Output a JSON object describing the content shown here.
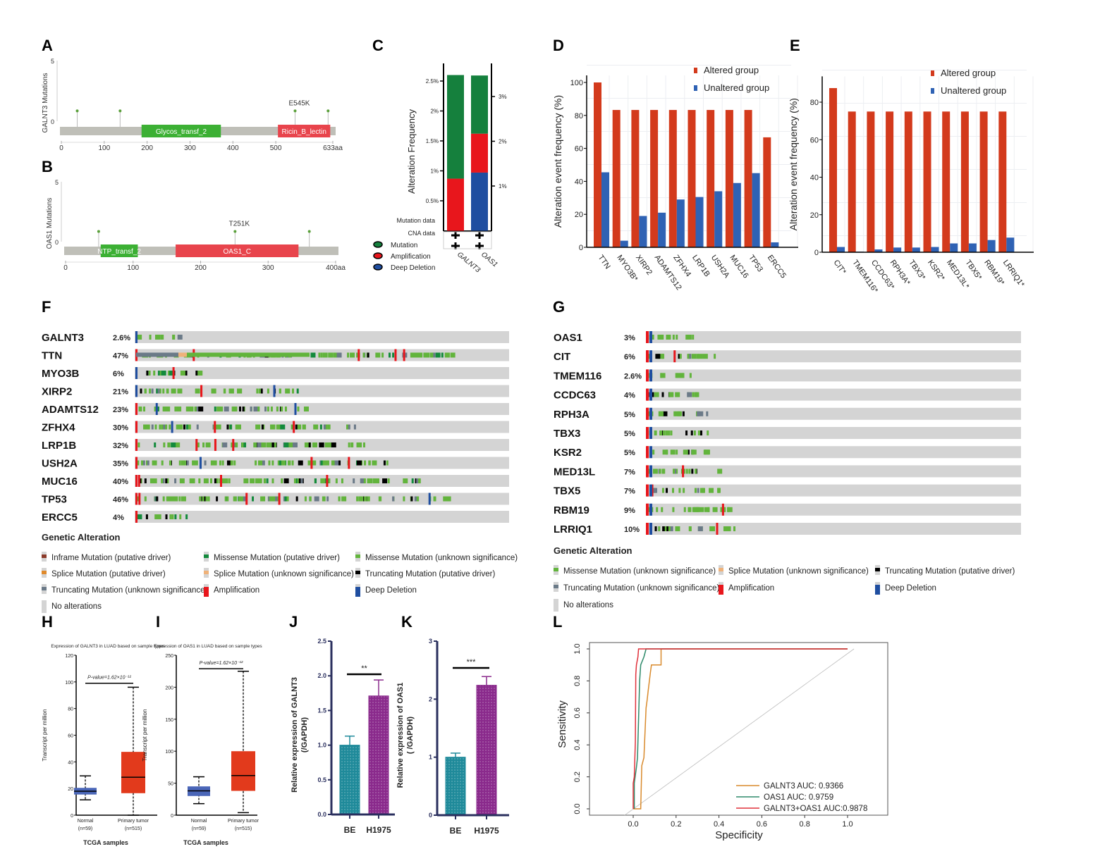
{
  "panel_letters": [
    "A",
    "B",
    "C",
    "D",
    "E",
    "F",
    "G",
    "H",
    "I",
    "J",
    "K",
    "L"
  ],
  "chart_data": [
    {
      "panel": "A",
      "type": "lollipop",
      "ylabel": "GALNT3 Mutations",
      "yticks": [
        "5",
        "0"
      ],
      "xticks": [
        "0",
        "100",
        "200",
        "300",
        "400",
        "500",
        "633aa"
      ],
      "length": 633,
      "domains": [
        {
          "name": "Glycos_transf_2",
          "start": 187,
          "end": 372,
          "color": "#3cb034"
        },
        {
          "name": "Ricin_B_lectin",
          "start": 505,
          "end": 627,
          "color": "#e8444c"
        }
      ],
      "mutations": [
        {
          "pos": 37,
          "count": 1
        },
        {
          "pos": 137,
          "count": 1
        },
        {
          "pos": 545,
          "count": 1,
          "label": "E545K"
        },
        {
          "pos": 622,
          "count": 1
        }
      ]
    },
    {
      "panel": "B",
      "type": "lollipop",
      "ylabel": "OAS1 Mutations",
      "yticks": [
        "5",
        "0"
      ],
      "xticks": [
        "0",
        "100",
        "200",
        "300",
        "400aa"
      ],
      "length": 400,
      "domains": [
        {
          "name": "NTP_transf_2",
          "start": 52,
          "end": 107,
          "color": "#3cb034"
        },
        {
          "name": "OAS1_C",
          "start": 163,
          "end": 345,
          "color": "#e8444c"
        }
      ],
      "mutations": [
        {
          "pos": 49,
          "count": 1
        },
        {
          "pos": 251,
          "count": 1,
          "label": "T251K"
        },
        {
          "pos": 361,
          "count": 1
        }
      ]
    },
    {
      "panel": "C",
      "type": "stacked-bar",
      "ylabel": "Alteration Frequency",
      "left_ticks": [
        "2.5%",
        "2%",
        "1.5%",
        "1%",
        "0.5%"
      ],
      "right_ticks": [
        "3%",
        "2%",
        "1%"
      ],
      "categories": [
        "GALNT3",
        "OAS1"
      ],
      "series": [
        {
          "name": "Deep Deletion",
          "color": "#1f4ea0",
          "values": [
            0,
            1.3
          ]
        },
        {
          "name": "Amplification",
          "color": "#e8161c",
          "values": [
            0.87,
            0.87
          ]
        },
        {
          "name": "Mutation",
          "color": "#15803d",
          "values": [
            1.73,
            1.3
          ]
        }
      ],
      "row_labels": [
        "Mutation data",
        "CNA data"
      ],
      "legend": [
        "Mutation",
        "Amplification",
        "Deep Deletion"
      ]
    },
    {
      "panel": "D",
      "type": "bar",
      "ylabel": "Alteration event frequency (%)",
      "ylim": [
        0,
        100
      ],
      "yticks": [
        0,
        20,
        40,
        60,
        80,
        100
      ],
      "categories": [
        "TTN",
        "MYO3B*",
        "XIRP2",
        "ADAMTS12",
        "ZFHX4",
        "LRP1B",
        "USH2A",
        "MUC16",
        "TP53",
        "ERCC5"
      ],
      "series": [
        {
          "name": "Altered group",
          "color": "#d33a1c",
          "values": [
            100,
            83.3,
            83.3,
            83.3,
            83.3,
            83.3,
            83.3,
            83.3,
            83.3,
            66.7
          ]
        },
        {
          "name": "Unaltered group",
          "color": "#2f62b4",
          "values": [
            45.5,
            4,
            19,
            21,
            29,
            30.5,
            34,
            39,
            45,
            3
          ]
        }
      ],
      "legend": "top-right"
    },
    {
      "panel": "E",
      "type": "bar",
      "ylabel": "Alteration event frequency (%)",
      "ylim": [
        0,
        90
      ],
      "yticks": [
        0,
        20,
        40,
        60,
        80
      ],
      "categories": [
        "CIT*",
        "TMEM116*",
        "CCDC63*",
        "RPH3A*",
        "TBX3*",
        "KSR2*",
        "MED13L*",
        "TBX5*",
        "RBM19*",
        "LRRIQ1*"
      ],
      "series": [
        {
          "name": "Altered group",
          "color": "#d33a1c",
          "values": [
            87.5,
            75,
            75,
            75,
            75,
            75,
            75,
            75,
            75,
            75
          ]
        },
        {
          "name": "Unaltered group",
          "color": "#2f62b4",
          "values": [
            2.8,
            0.3,
            1.5,
            2.5,
            2.5,
            2.8,
            4.7,
            4.7,
            6.5,
            7.8
          ]
        }
      ],
      "legend": "top-right"
    },
    {
      "panel": "F",
      "type": "oncoprint",
      "genes": [
        {
          "name": "GALNT3",
          "pct": "2.6%"
        },
        {
          "name": "TTN",
          "pct": "47%"
        },
        {
          "name": "MYO3B",
          "pct": "6%"
        },
        {
          "name": "XIRP2",
          "pct": "21%"
        },
        {
          "name": "ADAMTS12",
          "pct": "23%"
        },
        {
          "name": "ZFHX4",
          "pct": "30%"
        },
        {
          "name": "LRP1B",
          "pct": "32%"
        },
        {
          "name": "USH2A",
          "pct": "35%"
        },
        {
          "name": "MUC16",
          "pct": "40%"
        },
        {
          "name": "TP53",
          "pct": "46%"
        },
        {
          "name": "ERCC5",
          "pct": "4%"
        }
      ],
      "legend_title": "Genetic Alteration",
      "legend": [
        {
          "label": "Inframe Mutation (putative driver)",
          "color": "#8b3a2a"
        },
        {
          "label": "Missense Mutation (putative driver)",
          "color": "#138a3c"
        },
        {
          "label": "Missense Mutation (unknown significance)",
          "color": "#62b43c"
        },
        {
          "label": "Splice Mutation (putative driver)",
          "color": "#e08a2c"
        },
        {
          "label": "Splice Mutation (unknown significance)",
          "color": "#efb27a"
        },
        {
          "label": "Truncating Mutation (putative driver)",
          "color": "#000000"
        },
        {
          "label": "Truncating Mutation (unknown significance)",
          "color": "#6b7a88"
        },
        {
          "label": "Amplification",
          "color": "#e8161c"
        },
        {
          "label": "Deep Deletion",
          "color": "#1f4ea0"
        },
        {
          "label": "No alterations",
          "color": "#d4d4d4"
        }
      ]
    },
    {
      "panel": "G",
      "type": "oncoprint",
      "genes": [
        {
          "name": "OAS1",
          "pct": "3%"
        },
        {
          "name": "CIT",
          "pct": "6%"
        },
        {
          "name": "TMEM116",
          "pct": "2.6%"
        },
        {
          "name": "CCDC63",
          "pct": "4%"
        },
        {
          "name": "RPH3A",
          "pct": "5%"
        },
        {
          "name": "TBX3",
          "pct": "5%"
        },
        {
          "name": "KSR2",
          "pct": "5%"
        },
        {
          "name": "MED13L",
          "pct": "7%"
        },
        {
          "name": "TBX5",
          "pct": "7%"
        },
        {
          "name": "RBM19",
          "pct": "9%"
        },
        {
          "name": "LRRIQ1",
          "pct": "10%"
        }
      ],
      "legend_title": "Genetic Alteration",
      "legend": [
        {
          "label": "Missense Mutation (unknown significance)",
          "color": "#62b43c"
        },
        {
          "label": "Splice Mutation (unknown significance)",
          "color": "#efb27a"
        },
        {
          "label": "Truncating Mutation (putative driver)",
          "color": "#000000"
        },
        {
          "label": "Truncating Mutation (unknown significance)",
          "color": "#6b7a88"
        },
        {
          "label": "Amplification",
          "color": "#e8161c"
        },
        {
          "label": "Deep Deletion",
          "color": "#1f4ea0"
        },
        {
          "label": "No alterations",
          "color": "#d4d4d4"
        }
      ]
    },
    {
      "panel": "H",
      "type": "boxplot",
      "title": "Expression of GALNT3 in LUAD based on sample types",
      "ylabel": "Transcript per million",
      "xlabel": "TCGA samples",
      "ylim": [
        0,
        120
      ],
      "yticks": [
        0,
        20,
        40,
        60,
        80,
        100,
        120
      ],
      "pvalue": "P-value=1.62×10⁻¹²",
      "groups": [
        {
          "name": "Normal",
          "n": "(n=59)",
          "min": 11.5,
          "q1": 15.5,
          "median": 18,
          "q3": 20.5,
          "max": 29.5,
          "color": "#4a66b8"
        },
        {
          "name": "Primary tumor",
          "n": "(n=515)",
          "min": 0,
          "q1": 16.5,
          "median": 28.5,
          "q3": 47.5,
          "max": 96,
          "color": "#e23a1c"
        }
      ]
    },
    {
      "panel": "I",
      "type": "boxplot",
      "title": "Expression of OAS1 in LUAD based on sample types",
      "ylabel": "Transcript per million",
      "xlabel": "TCGA samples",
      "ylim": [
        0,
        250
      ],
      "yticks": [
        0,
        50,
        100,
        150,
        200,
        250
      ],
      "pvalue": "P-value=1.62×10⁻¹²",
      "groups": [
        {
          "name": "Normal",
          "n": "(n=59)",
          "min": 18,
          "q1": 30,
          "median": 38,
          "q3": 45,
          "max": 60,
          "color": "#4a66b8"
        },
        {
          "name": "Primary tumor",
          "n": "(n=515)",
          "min": 4,
          "q1": 38,
          "median": 62,
          "q3": 100,
          "max": 225,
          "color": "#e23a1c"
        }
      ]
    },
    {
      "panel": "J",
      "type": "bar",
      "ylabel": "Relative expression of GALNT3",
      "ylabel2": "(/GAPDH)",
      "ylim": [
        0,
        2.5
      ],
      "yticks": [
        "0.0",
        "0.5",
        "1.0",
        "1.5",
        "2.0",
        "2.5"
      ],
      "categories": [
        "BE",
        "H1975"
      ],
      "values": [
        1.0,
        1.71
      ],
      "errors": [
        0.13,
        0.23
      ],
      "colors": [
        "#1f8a9a",
        "#8a2a8c"
      ],
      "significance": "**"
    },
    {
      "panel": "K",
      "type": "bar",
      "ylabel": "Relative expression of OAS1",
      "ylabel2": "( /GAPDH)",
      "ylim": [
        0,
        3
      ],
      "yticks": [
        "0",
        "1",
        "2",
        "3"
      ],
      "categories": [
        "BE",
        "H1975"
      ],
      "values": [
        1.0,
        2.24
      ],
      "errors": [
        0.07,
        0.15
      ],
      "colors": [
        "#1f8a9a",
        "#8a2a8c"
      ],
      "significance": "***"
    },
    {
      "panel": "L",
      "type": "line",
      "xlabel": "Specificity",
      "ylabel": "Sensitivity",
      "xticks": [
        "0.0",
        "0.2",
        "0.4",
        "0.6",
        "0.8",
        "1.0"
      ],
      "yticks": [
        "0.0",
        "0.2",
        "0.4",
        "0.6",
        "0.8",
        "1.0"
      ],
      "legend": "bottom-right",
      "series": [
        {
          "name": "GALNT3 AUC: 0.9366",
          "color": "#d98a2c",
          "points": [
            [
              0,
              0
            ],
            [
              0.035,
              0
            ],
            [
              0.04,
              0.27
            ],
            [
              0.05,
              0.32
            ],
            [
              0.06,
              0.63
            ],
            [
              0.065,
              0.68
            ],
            [
              0.07,
              0.74
            ],
            [
              0.08,
              0.85
            ],
            [
              0.085,
              0.9
            ],
            [
              0.13,
              0.9
            ],
            [
              0.13,
              1
            ],
            [
              1,
              1
            ]
          ]
        },
        {
          "name": "OAS1 AUC: 0.9759",
          "color": "#2e8a6a",
          "points": [
            [
              0.005,
              0
            ],
            [
              0.005,
              0.16
            ],
            [
              0.015,
              0.26
            ],
            [
              0.02,
              0.32
            ],
            [
              0.03,
              0.8
            ],
            [
              0.035,
              0.9
            ],
            [
              0.05,
              0.95
            ],
            [
              0.06,
              1
            ],
            [
              1,
              1
            ]
          ]
        },
        {
          "name": "GALNT3+OAS1 AUC:0.9878",
          "color": "#e0303a",
          "points": [
            [
              0,
              0
            ],
            [
              0,
              0.16
            ],
            [
              0.005,
              0.2
            ],
            [
              0.01,
              0.42
            ],
            [
              0.012,
              0.84
            ],
            [
              0.015,
              0.9
            ],
            [
              0.022,
              0.95
            ],
            [
              0.025,
              1
            ],
            [
              1,
              1
            ]
          ]
        }
      ]
    }
  ]
}
